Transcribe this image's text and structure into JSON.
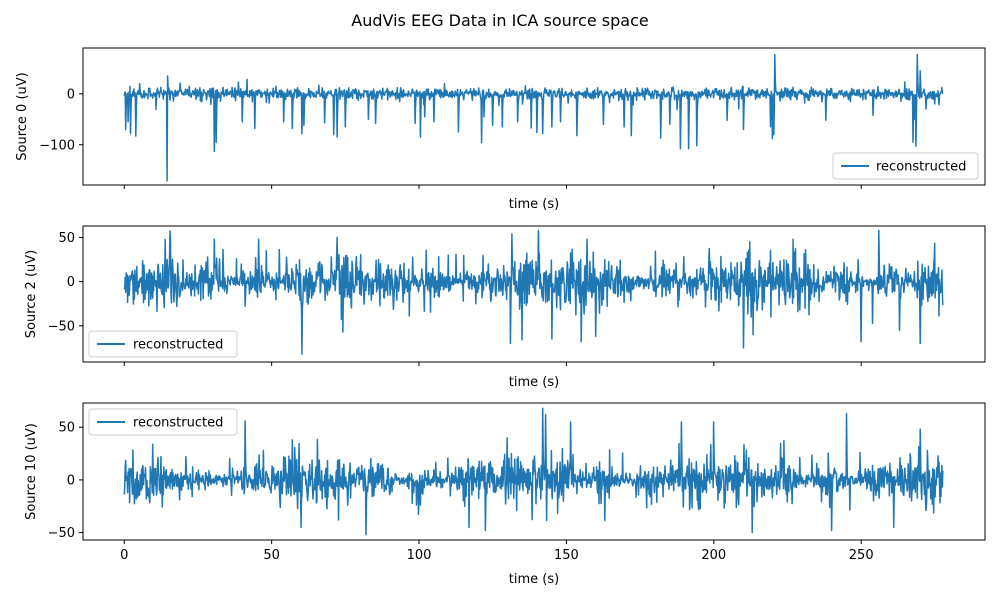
{
  "figure": {
    "title": "AudVis EEG Data in ICA source space"
  },
  "colors": {
    "series": "#1f77b4",
    "axes": "#000000",
    "legend_border": "#cccccc",
    "background": "#ffffff"
  },
  "chart_data": [
    {
      "type": "line",
      "title": "",
      "xlabel": "time (s)",
      "ylabel": "Source 0 (uV)",
      "xlim": [
        -14,
        292
      ],
      "ylim": [
        -179,
        90
      ],
      "xticks": [
        0,
        50,
        100,
        150,
        200,
        250
      ],
      "xtick_labels_visible": false,
      "yticks": [
        -100,
        0
      ],
      "ytick_labels": [
        "−100",
        "0"
      ],
      "legend": {
        "placement": "lower right",
        "entries": [
          "reconstructed"
        ]
      },
      "grid": false,
      "series": [
        {
          "name": "reconstructed",
          "t_start": 0,
          "t_end": 277.7,
          "baseline_noise_uv": 6,
          "spikes": [
            [
              0.5,
              -70
            ],
            [
              1.3,
              -55
            ],
            [
              2.2,
              -78
            ],
            [
              4.0,
              -83
            ],
            [
              14.5,
              -171
            ],
            [
              14.7,
              35
            ],
            [
              30.5,
              -113
            ],
            [
              31.2,
              -95
            ],
            [
              40.0,
              -55
            ],
            [
              44.3,
              -68
            ],
            [
              54.0,
              -55
            ],
            [
              57.0,
              -68
            ],
            [
              60.3,
              -78
            ],
            [
              61.0,
              -62
            ],
            [
              68.0,
              -57
            ],
            [
              71.0,
              -80
            ],
            [
              72.2,
              -85
            ],
            [
              75.0,
              -65
            ],
            [
              82.8,
              -50
            ],
            [
              85.3,
              -58
            ],
            [
              98.7,
              -58
            ],
            [
              100.5,
              -85
            ],
            [
              102.0,
              -45
            ],
            [
              105.0,
              -55
            ],
            [
              113.3,
              -75
            ],
            [
              121.2,
              -96
            ],
            [
              122.0,
              -45
            ],
            [
              125.0,
              -62
            ],
            [
              128.3,
              -65
            ],
            [
              133.5,
              -55
            ],
            [
              138.0,
              -67
            ],
            [
              140.0,
              -76
            ],
            [
              142.0,
              -78
            ],
            [
              145.0,
              -65
            ],
            [
              148.0,
              -55
            ],
            [
              153.5,
              -82
            ],
            [
              162.5,
              -60
            ],
            [
              169.6,
              -65
            ],
            [
              172.0,
              -82
            ],
            [
              182.0,
              -87
            ],
            [
              185.0,
              -60
            ],
            [
              188.7,
              -108
            ],
            [
              191.5,
              -108
            ],
            [
              194.3,
              -102
            ],
            [
              204.5,
              -52
            ],
            [
              210.0,
              -70
            ],
            [
              219.2,
              -65
            ],
            [
              219.8,
              -88
            ],
            [
              220.3,
              -80
            ],
            [
              220.7,
              77
            ],
            [
              238.0,
              -52
            ],
            [
              254.0,
              -42
            ],
            [
              268.0,
              -50
            ],
            [
              267.5,
              -95
            ],
            [
              268.5,
              -103
            ],
            [
              269.0,
              77
            ],
            [
              270.0,
              45
            ],
            [
              272.0,
              -30
            ],
            [
              275.0,
              -20
            ]
          ]
        }
      ]
    },
    {
      "type": "line",
      "title": "",
      "xlabel": "time (s)",
      "ylabel": "Source 2 (uV)",
      "xlim": [
        -14,
        292
      ],
      "ylim": [
        -91,
        63
      ],
      "xticks": [
        0,
        50,
        100,
        150,
        200,
        250
      ],
      "xtick_labels_visible": false,
      "yticks": [
        -50,
        0,
        50
      ],
      "ytick_labels": [
        "−50",
        "0",
        "50"
      ],
      "legend": {
        "placement": "lower left",
        "entries": [
          "reconstructed"
        ]
      },
      "grid": false,
      "series": [
        {
          "name": "reconstructed",
          "t_start": 0,
          "t_end": 277.7,
          "noise_sd_uv": 14,
          "bursts": [
            [
              30.5,
              48
            ],
            [
              45.5,
              48
            ],
            [
              60.3,
              -82
            ],
            [
              131.0,
              -70
            ],
            [
              140.5,
              58
            ],
            [
              145.0,
              -65
            ],
            [
              155.0,
              -68
            ],
            [
              157.0,
              48
            ],
            [
              160.0,
              -62
            ],
            [
              210.0,
              -75
            ],
            [
              250.0,
              -68
            ],
            [
              256.0,
              58
            ],
            [
              263.0,
              -55
            ],
            [
              270.0,
              -70
            ]
          ]
        }
      ]
    },
    {
      "type": "line",
      "title": "",
      "xlabel": "time (s)",
      "ylabel": "Source 10 (uV)",
      "xlim": [
        -14,
        292
      ],
      "ylim": [
        -57,
        73
      ],
      "xticks": [
        0,
        50,
        100,
        150,
        200,
        250
      ],
      "xtick_labels": [
        "0",
        "50",
        "100",
        "150",
        "200",
        "250"
      ],
      "xtick_labels_visible": true,
      "yticks": [
        -50,
        0,
        50
      ],
      "ytick_labels": [
        "−50",
        "0",
        "50"
      ],
      "legend": {
        "placement": "upper left",
        "entries": [
          "reconstructed"
        ]
      },
      "grid": false,
      "series": [
        {
          "name": "reconstructed",
          "t_start": 0,
          "t_end": 277.7,
          "noise_sd_uv": 11,
          "bursts": [
            [
              41.0,
              56
            ],
            [
              60.0,
              -45
            ],
            [
              82.0,
              -52
            ],
            [
              122.5,
              -48
            ],
            [
              142.0,
              68
            ],
            [
              143.0,
              62
            ],
            [
              151.5,
              55
            ],
            [
              189.0,
              55
            ],
            [
              200.0,
              55
            ],
            [
              213.0,
              -50
            ],
            [
              240.0,
              -48
            ],
            [
              245.0,
              63
            ],
            [
              261.0,
              -45
            ],
            [
              270.0,
              48
            ]
          ]
        }
      ]
    }
  ]
}
